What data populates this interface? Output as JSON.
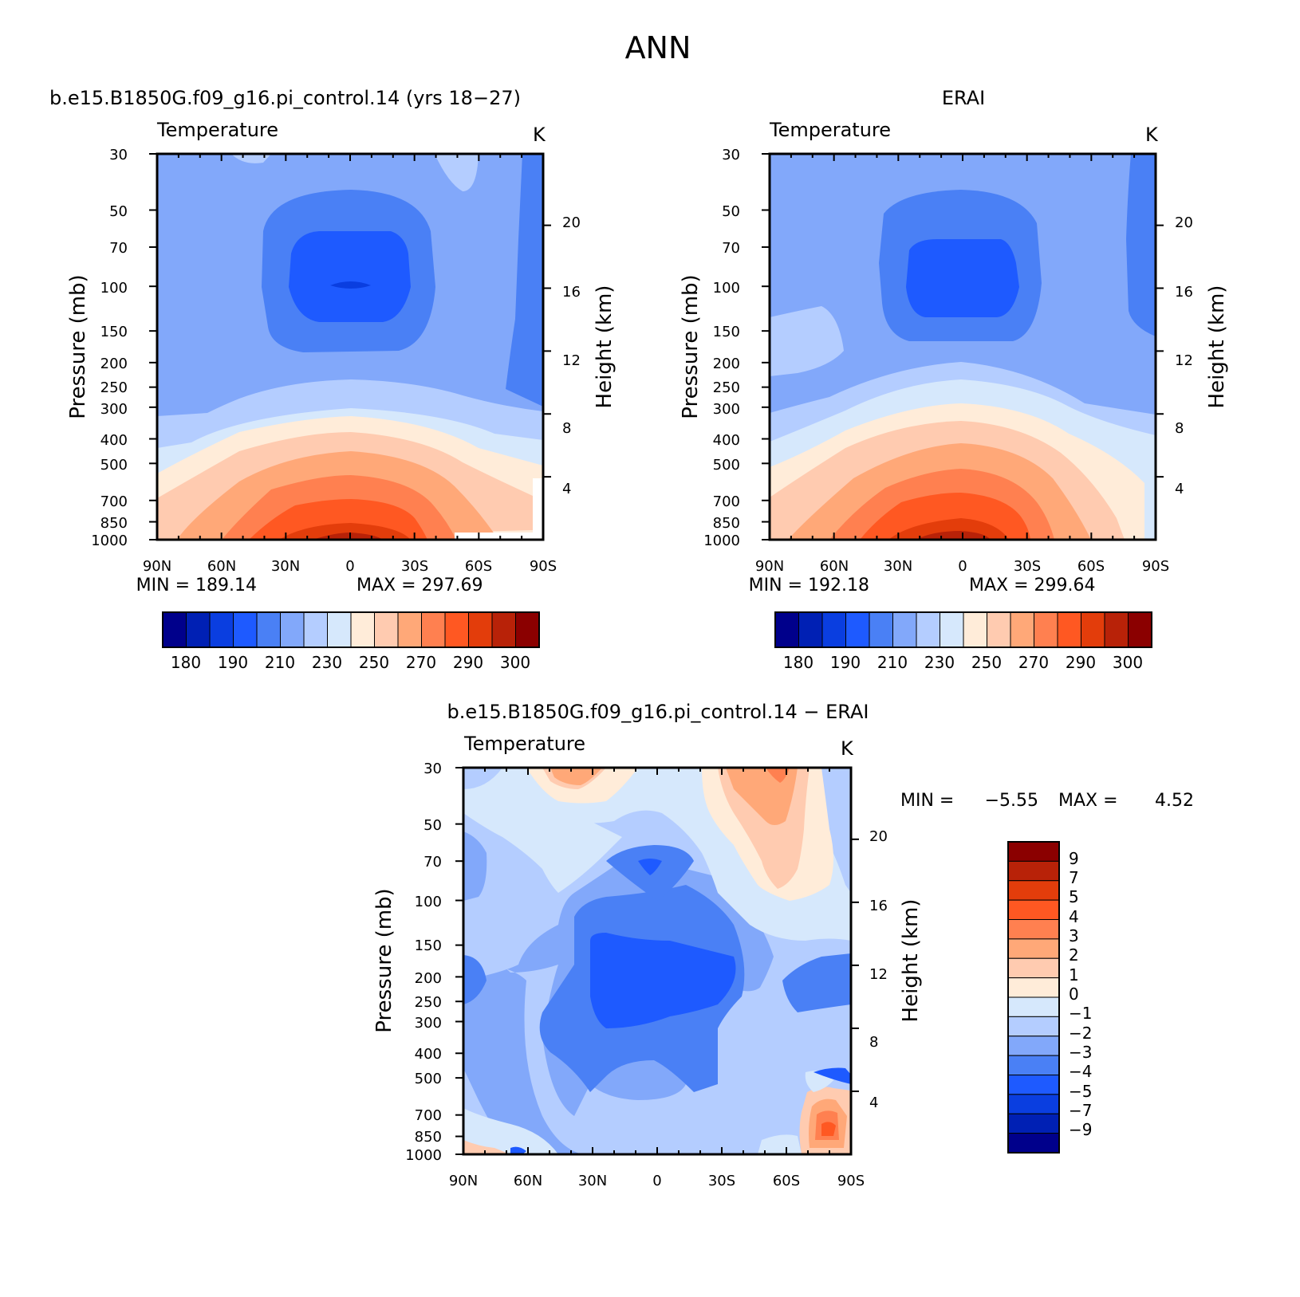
{
  "figure": {
    "title": "ANN"
  },
  "palette": [
    "#00008B",
    "#0020B4",
    "#0A3EE0",
    "#1E5AFF",
    "#4A80F5",
    "#82A8FA",
    "#B4CDFF",
    "#D6E8FC",
    "#FFECD9",
    "#FFCBB0",
    "#FFA878",
    "#FF8050",
    "#FF5822",
    "#E33D0B",
    "#B82208",
    "#8B0000"
  ],
  "chart_data": [
    {
      "type": "heatmap",
      "panel": "model",
      "title": "b.e15.B1850G.f09_g16.pi_control.14 (yrs 18−27)",
      "variable": "Temperature",
      "units": "K",
      "xlabel": "",
      "ylabel": "Pressure (mb)",
      "ylabel_right": "Height (km)",
      "x_ticks": [
        "90N",
        "60N",
        "30N",
        "0",
        "30S",
        "60S",
        "90S"
      ],
      "y_ticks": [
        "30",
        "50",
        "70",
        "100",
        "150",
        "200",
        "250",
        "300",
        "400",
        "500",
        "700",
        "850",
        "1000"
      ],
      "y_right_ticks": [
        "20",
        "16",
        "12",
        "8",
        "4"
      ],
      "xlim": [
        90,
        -90
      ],
      "ylim": [
        1000,
        30
      ],
      "min_text": "MIN = 189.14",
      "max_text": "MAX = 297.69",
      "min": 189.14,
      "max": 297.69,
      "levels": [
        180,
        190,
        210,
        230,
        250,
        270,
        290,
        300
      ],
      "colorbar_labels": [
        "180",
        "190",
        "210",
        "230",
        "250",
        "270",
        "290",
        "300"
      ]
    },
    {
      "type": "heatmap",
      "panel": "obs",
      "title": "ERAI",
      "variable": "Temperature",
      "units": "K",
      "xlabel": "",
      "ylabel": "Pressure (mb)",
      "ylabel_right": "Height (km)",
      "x_ticks": [
        "90N",
        "60N",
        "30N",
        "0",
        "30S",
        "60S",
        "90S"
      ],
      "y_ticks": [
        "30",
        "50",
        "70",
        "100",
        "150",
        "200",
        "250",
        "300",
        "400",
        "500",
        "700",
        "850",
        "1000"
      ],
      "y_right_ticks": [
        "20",
        "16",
        "12",
        "8",
        "4"
      ],
      "xlim": [
        90,
        -90
      ],
      "ylim": [
        1000,
        30
      ],
      "min_text": "MIN = 192.18",
      "max_text": "MAX = 299.64",
      "min": 192.18,
      "max": 299.64,
      "colorbar_labels": [
        "180",
        "190",
        "210",
        "230",
        "250",
        "270",
        "290",
        "300"
      ]
    },
    {
      "type": "heatmap",
      "panel": "difference",
      "title": "b.e15.B1850G.f09_g16.pi_control.14 − ERAI",
      "variable": "Temperature",
      "units": "K",
      "ylabel": "Pressure (mb)",
      "ylabel_right": "Height (km)",
      "x_ticks": [
        "90N",
        "60N",
        "30N",
        "0",
        "30S",
        "60S",
        "90S"
      ],
      "y_ticks": [
        "30",
        "50",
        "70",
        "100",
        "150",
        "200",
        "250",
        "300",
        "400",
        "500",
        "700",
        "850",
        "1000"
      ],
      "y_right_ticks": [
        "20",
        "16",
        "12",
        "8",
        "4"
      ],
      "min_text": "MIN =",
      "min_value": "−5.55",
      "max_text": "MAX =",
      "max_value": "4.52",
      "min": -5.55,
      "max": 4.52,
      "colorbar_labels": [
        "9",
        "7",
        "5",
        "4",
        "3",
        "2",
        "1",
        "0",
        "−1",
        "−2",
        "−3",
        "−4",
        "−5",
        "−7",
        "−9"
      ]
    }
  ]
}
